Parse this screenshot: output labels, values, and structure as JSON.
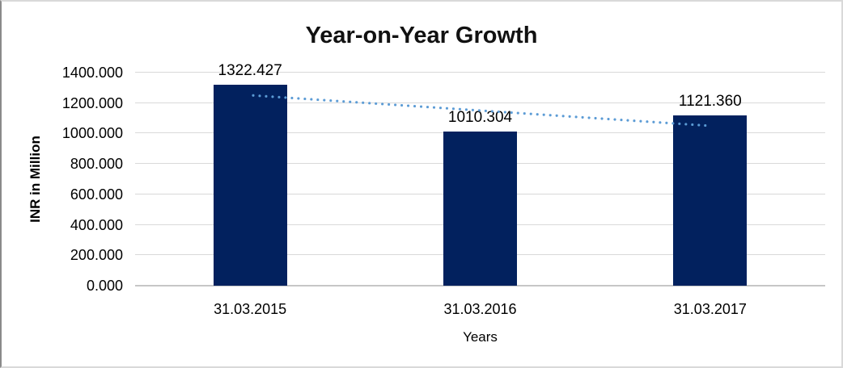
{
  "chart_data": {
    "type": "bar",
    "title": "Year-on-Year Growth",
    "xlabel": "Years",
    "ylabel": "INR in Million",
    "categories": [
      "31.03.2015",
      "31.03.2016",
      "31.03.2017"
    ],
    "series": [
      {
        "name": "INR in Million",
        "values": [
          1322.427,
          1010.304,
          1121.36
        ]
      }
    ],
    "data_labels": [
      "1322.427",
      "1010.304",
      "1121.360"
    ],
    "y_ticks": [
      "1400.000",
      "1200.000",
      "1000.000",
      "800.000",
      "600.000",
      "400.000",
      "200.000",
      "0.000"
    ],
    "ylim": [
      0,
      1400
    ],
    "y_tick_step": 200,
    "grid": true,
    "legend": "none",
    "bar_color": "#02215E",
    "gridline_color": "#D9D9D9",
    "axis_line_color": "#C6C6C6",
    "trendline": {
      "type": "linear",
      "style": "dotted",
      "color": "#5B9BD5"
    }
  }
}
